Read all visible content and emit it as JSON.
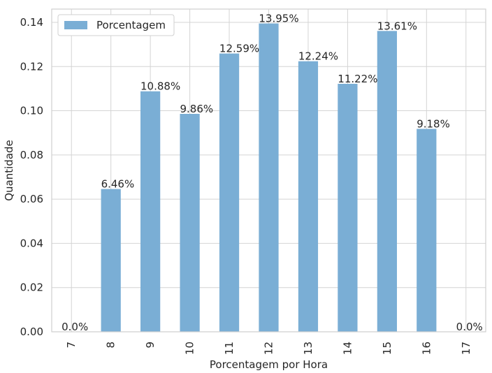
{
  "chart_data": {
    "type": "bar",
    "categories": [
      "7",
      "8",
      "9",
      "10",
      "11",
      "12",
      "13",
      "14",
      "15",
      "16",
      "17"
    ],
    "series": [
      {
        "name": "Porcentagem",
        "values": [
          0.0,
          0.0646,
          0.1088,
          0.0986,
          0.1259,
          0.1395,
          0.1224,
          0.1122,
          0.1361,
          0.0918,
          0.0
        ],
        "labels": [
          "0.0%",
          "6.46%",
          "10.88%",
          "9.86%",
          "12.59%",
          "13.95%",
          "12.24%",
          "11.22%",
          "13.61%",
          "9.18%",
          "0.0%"
        ],
        "color": "#7aaed5"
      }
    ],
    "xlabel": "Porcentagem por Hora",
    "ylabel": "Quantidade",
    "ylim": [
      0,
      0.146
    ],
    "yticks": [
      "0.00",
      "0.02",
      "0.04",
      "0.06",
      "0.08",
      "0.10",
      "0.12",
      "0.14"
    ],
    "grid": true,
    "legend_position": "top-left",
    "colors": {
      "grid": "#d4d4d4",
      "frame": "#cfcfcf",
      "text": "#262626"
    }
  }
}
